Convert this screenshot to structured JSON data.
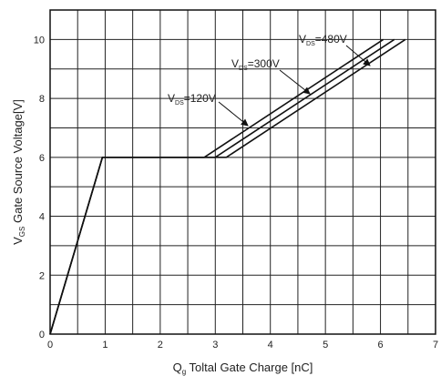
{
  "chart_data": {
    "type": "line",
    "title": "",
    "xlabel": {
      "prefix": "Q",
      "sub": "g",
      "text": " Toltal Gate Charge [nC]"
    },
    "ylabel": {
      "prefix": "V",
      "sub": "GS",
      "text": " Gate Source Voltage[V]"
    },
    "xlim": [
      0,
      7
    ],
    "ylim": [
      0,
      11
    ],
    "x_ticks": [
      "0",
      "1",
      "2",
      "3",
      "4",
      "5",
      "6",
      "7"
    ],
    "y_ticks": [
      "0",
      "2",
      "4",
      "6",
      "8",
      "10"
    ],
    "grid": true,
    "series": [
      {
        "name": "VDS=120V",
        "label": {
          "prefix": "V",
          "sub": "DS",
          "text": "=120V"
        },
        "x": [
          0,
          0.95,
          2.8,
          6.05
        ],
        "y": [
          0,
          6,
          6,
          10
        ]
      },
      {
        "name": "VDS=300V",
        "label": {
          "prefix": "V",
          "sub": "DS",
          "text": "=300V"
        },
        "x": [
          0,
          0.95,
          3.0,
          6.25
        ],
        "y": [
          0,
          6,
          6,
          10
        ]
      },
      {
        "name": "VDS=480V",
        "label": {
          "prefix": "V",
          "sub": "DS",
          "text": "=480V"
        },
        "x": [
          0,
          0.95,
          3.2,
          6.45
        ],
        "y": [
          0,
          6,
          6,
          10
        ]
      }
    ]
  }
}
